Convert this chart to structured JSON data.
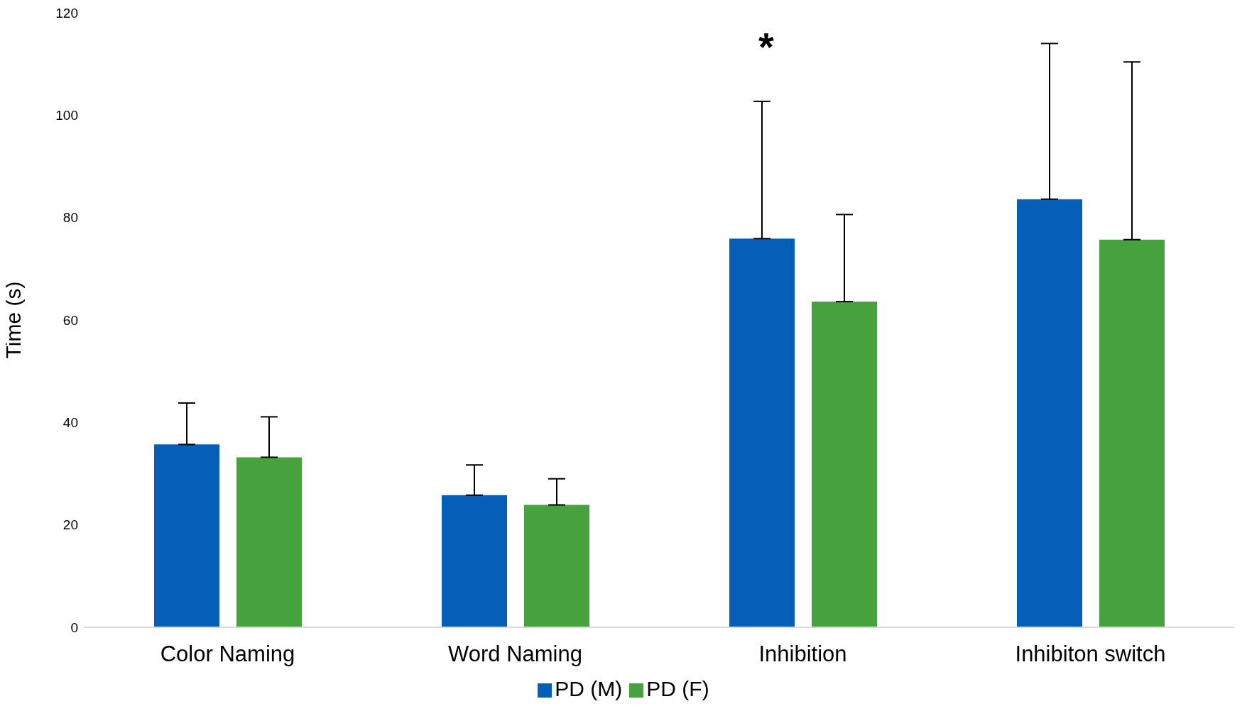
{
  "chart_data": {
    "type": "bar",
    "ylabel": "Time (s)",
    "categories": [
      "Color Naming",
      "Word Naming",
      "Inhibition",
      "Inhibiton switch"
    ],
    "series": [
      {
        "name": "PD (M)",
        "color": "#055fb9",
        "values": [
          35.7,
          25.8,
          75.9,
          83.6
        ],
        "errors": [
          [
            35.7,
            43.8
          ],
          [
            25.8,
            31.7
          ],
          [
            75.9,
            102.7
          ],
          [
            83.6,
            114.0
          ]
        ]
      },
      {
        "name": "PD (F)",
        "color": "#46a23d",
        "values": [
          33.2,
          23.9,
          63.6,
          75.7
        ],
        "errors": [
          [
            33.2,
            41.1
          ],
          [
            23.9,
            29.0
          ],
          [
            63.6,
            80.6
          ],
          [
            75.7,
            110.4
          ]
        ]
      }
    ],
    "ylim": [
      0,
      120
    ],
    "yticks": [
      0,
      20,
      40,
      60,
      80,
      100,
      120
    ],
    "grid": false,
    "legend": "bottom",
    "annotations": [
      "*"
    ]
  }
}
